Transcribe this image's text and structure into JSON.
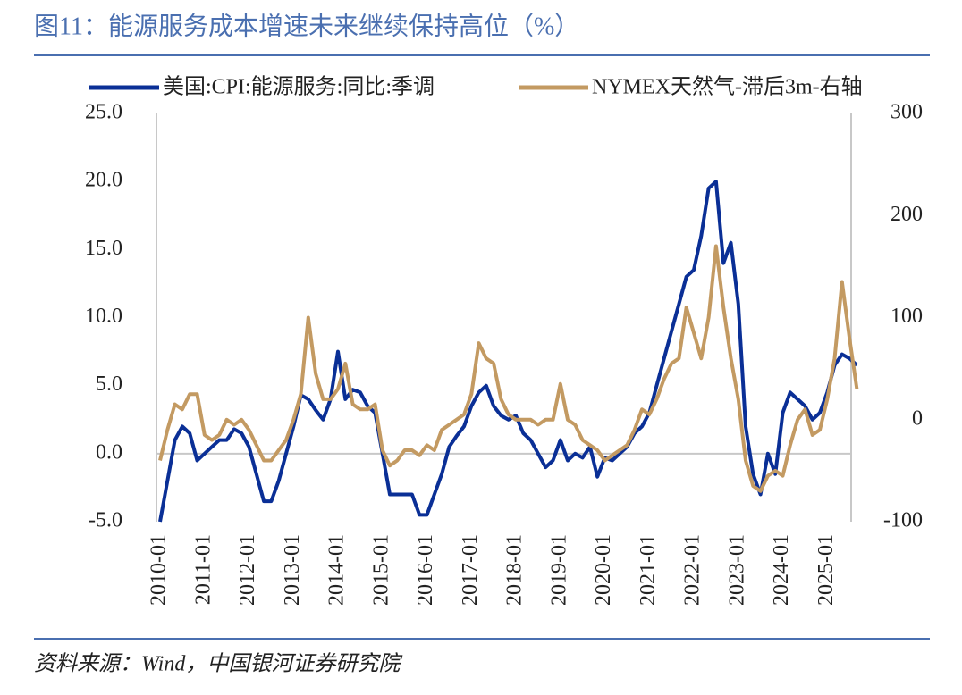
{
  "chart_data": {
    "type": "line",
    "title": "图11：能源服务成本增速未来继续保持高位（%）",
    "source": "资料来源：Wind，中国银河证券研究院",
    "x": [
      "2010-01",
      "2010-03",
      "2010-05",
      "2010-07",
      "2010-09",
      "2010-11",
      "2011-01",
      "2011-03",
      "2011-05",
      "2011-07",
      "2011-09",
      "2011-11",
      "2012-01",
      "2012-03",
      "2012-05",
      "2012-07",
      "2012-09",
      "2012-11",
      "2013-01",
      "2013-03",
      "2013-05",
      "2013-07",
      "2013-09",
      "2013-11",
      "2014-01",
      "2014-03",
      "2014-05",
      "2014-07",
      "2014-09",
      "2014-11",
      "2015-01",
      "2015-03",
      "2015-05",
      "2015-07",
      "2015-09",
      "2015-11",
      "2016-01",
      "2016-03",
      "2016-05",
      "2016-07",
      "2016-09",
      "2016-11",
      "2017-01",
      "2017-03",
      "2017-05",
      "2017-07",
      "2017-09",
      "2017-11",
      "2018-01",
      "2018-03",
      "2018-05",
      "2018-07",
      "2018-09",
      "2018-11",
      "2019-01",
      "2019-03",
      "2019-05",
      "2019-07",
      "2019-09",
      "2019-11",
      "2020-01",
      "2020-03",
      "2020-05",
      "2020-07",
      "2020-09",
      "2020-11",
      "2021-01",
      "2021-03",
      "2021-05",
      "2021-07",
      "2021-09",
      "2021-11",
      "2022-01",
      "2022-03",
      "2022-05",
      "2022-07",
      "2022-09",
      "2022-11",
      "2023-01",
      "2023-03",
      "2023-05",
      "2023-07",
      "2023-09",
      "2023-11",
      "2024-01",
      "2024-03",
      "2024-05",
      "2024-07",
      "2024-09",
      "2024-11",
      "2025-01",
      "2025-03",
      "2025-05",
      "2025-07",
      "2025-09"
    ],
    "xticks": [
      "2010-01",
      "2011-01",
      "2012-01",
      "2013-01",
      "2014-01",
      "2015-01",
      "2016-01",
      "2017-01",
      "2018-01",
      "2019-01",
      "2020-01",
      "2021-01",
      "2022-01",
      "2023-01",
      "2024-01",
      "2025-01"
    ],
    "series": [
      {
        "name": "美国:CPI:能源服务:同比:季调",
        "color": "#0a2f96",
        "axis": "y",
        "values": [
          -5,
          -2,
          1,
          2,
          1.5,
          -0.5,
          0,
          0.5,
          1,
          1,
          1.8,
          1.5,
          0.5,
          -1.5,
          -3.5,
          -3.5,
          -2,
          0,
          2,
          4.3,
          4,
          3.2,
          2.5,
          4,
          7.5,
          4,
          4.7,
          4.5,
          3.5,
          3,
          0,
          -3,
          -3,
          -3,
          -3,
          -4.5,
          -4.5,
          -3,
          -1.5,
          0.5,
          1.3,
          2,
          3.5,
          4.5,
          5,
          3.5,
          2.8,
          2.5,
          2.8,
          1.5,
          1,
          0,
          -1,
          -0.5,
          1,
          -0.5,
          0,
          -0.3,
          0.5,
          -1.7,
          -0.3,
          -0.5,
          0,
          0.5,
          1.5,
          2,
          3,
          5,
          7,
          9,
          11,
          13,
          13.5,
          16,
          19.5,
          20,
          14,
          15.5,
          11,
          2,
          -1.5,
          -3,
          0,
          -1.5,
          3,
          4.5,
          4,
          3.5,
          2.5,
          3,
          4.5,
          6.5,
          7.3,
          7,
          6.5
        ]
      },
      {
        "name": "NYMEX天然气-滞后3m-右轴",
        "color": "#c39a62",
        "axis": "y2",
        "values": [
          -40,
          -10,
          15,
          10,
          25,
          25,
          -15,
          -20,
          -15,
          0,
          -5,
          0,
          -10,
          -25,
          -40,
          -40,
          -30,
          -20,
          0,
          25,
          100,
          45,
          20,
          20,
          30,
          55,
          15,
          10,
          10,
          15,
          -30,
          -45,
          -40,
          -30,
          -30,
          -35,
          -25,
          -30,
          -10,
          -5,
          0,
          5,
          25,
          75,
          60,
          55,
          20,
          5,
          0,
          0,
          0,
          -5,
          0,
          0,
          35,
          0,
          -5,
          -20,
          -25,
          -30,
          -40,
          -35,
          -30,
          -25,
          -10,
          10,
          5,
          20,
          40,
          55,
          60,
          110,
          85,
          60,
          100,
          170,
          110,
          60,
          20,
          -40,
          -65,
          -70,
          -55,
          -50,
          -55,
          -25,
          0,
          10,
          -15,
          -10,
          20,
          60,
          135,
          80,
          30
        ]
      }
    ],
    "ylim": [
      -5,
      25
    ],
    "yticks": [
      {
        "value": -5,
        "label": "-5.0"
      },
      {
        "value": 0,
        "label": "0.0"
      },
      {
        "value": 5,
        "label": "5.0"
      },
      {
        "value": 10,
        "label": "10.0"
      },
      {
        "value": 15,
        "label": "15.0"
      },
      {
        "value": 20,
        "label": "20.0"
      },
      {
        "value": 25,
        "label": "25.0"
      }
    ],
    "y2lim": [
      -100,
      300
    ],
    "y2ticks": [
      -100,
      0,
      100,
      200,
      300
    ]
  }
}
